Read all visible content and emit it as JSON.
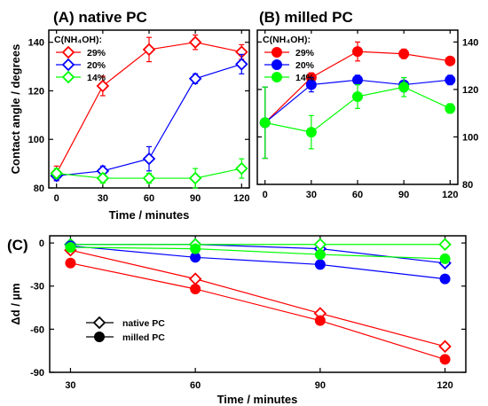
{
  "chart_data": [
    {
      "panel": "A",
      "type": "line",
      "title": "(A) native PC",
      "xlabel": "Time / minutes",
      "ylabel": "Contact angle / degrees",
      "x": [
        0,
        30,
        60,
        90,
        120
      ],
      "xlim": [
        -5,
        125
      ],
      "ylim": [
        80,
        145
      ],
      "yticks": [
        80,
        100,
        120,
        140
      ],
      "marker": "open-diamond",
      "legend_title": "C(NH₄OH):",
      "legend_position": "top-left",
      "series": [
        {
          "name": "29%",
          "color": "#ff0000",
          "values": [
            86,
            122,
            137,
            140,
            136
          ],
          "errors": [
            3,
            4,
            5,
            3,
            3
          ]
        },
        {
          "name": "20%",
          "color": "#0000ff",
          "values": [
            85,
            87,
            92,
            125,
            131
          ],
          "errors": [
            2,
            2,
            5,
            2,
            4
          ]
        },
        {
          "name": "14%",
          "color": "#00ff00",
          "values": [
            86,
            84,
            84,
            84,
            88
          ],
          "errors": [
            2,
            2,
            2,
            4,
            4
          ]
        }
      ]
    },
    {
      "panel": "B",
      "type": "line",
      "title": "(B) milled PC",
      "xlabel": "",
      "ylabel": "",
      "x": [
        0,
        30,
        60,
        90,
        120
      ],
      "xlim": [
        -5,
        125
      ],
      "ylim": [
        80,
        145
      ],
      "yticks": [
        80,
        100,
        120,
        140
      ],
      "marker": "filled-circle",
      "legend_title": "C(NH₄OH):",
      "legend_position": "top-left",
      "series": [
        {
          "name": "29%",
          "color": "#ff0000",
          "values": [
            106,
            125,
            136,
            135,
            132
          ],
          "errors": [
            15,
            2,
            4,
            2,
            1.5
          ]
        },
        {
          "name": "20%",
          "color": "#0000ff",
          "values": [
            106,
            122,
            124,
            122,
            124
          ],
          "errors": [
            15,
            3,
            2,
            3,
            2
          ]
        },
        {
          "name": "14%",
          "color": "#00ff00",
          "values": [
            106,
            102,
            117,
            121,
            112
          ],
          "errors": [
            15,
            7,
            5,
            4,
            2
          ]
        }
      ]
    },
    {
      "panel": "C",
      "type": "line",
      "title": "(C)",
      "xlabel": "Time / minutes",
      "ylabel": "Δd / µm",
      "x": [
        30,
        60,
        90,
        120
      ],
      "xlim": [
        25,
        125
      ],
      "ylim": [
        -90,
        5
      ],
      "yticks": [
        0,
        -30,
        -60,
        -90
      ],
      "legend_position": "bottom-left",
      "legend": [
        {
          "label": "native PC",
          "marker": "open-diamond"
        },
        {
          "label": "milled PC",
          "marker": "filled-circle"
        }
      ],
      "series": [
        {
          "name": "29% native PC",
          "color": "#ff0000",
          "marker": "open-diamond",
          "values": [
            -5,
            -25,
            -49,
            -72
          ]
        },
        {
          "name": "20% native PC",
          "color": "#0000ff",
          "marker": "open-diamond",
          "values": [
            -1,
            -1,
            -4,
            -14
          ]
        },
        {
          "name": "14% native PC",
          "color": "#00ff00",
          "marker": "open-diamond",
          "values": [
            -1,
            -1,
            -1,
            -1
          ]
        },
        {
          "name": "29% milled PC",
          "color": "#ff0000",
          "marker": "filled-circle",
          "values": [
            -14,
            -32,
            -54,
            -81
          ]
        },
        {
          "name": "20% milled PC",
          "color": "#0000ff",
          "marker": "filled-circle",
          "values": [
            -2,
            -10,
            -15,
            -25
          ]
        },
        {
          "name": "14% milled PC",
          "color": "#00ff00",
          "marker": "filled-circle",
          "values": [
            -3,
            -4,
            -8,
            -11
          ]
        }
      ]
    }
  ]
}
